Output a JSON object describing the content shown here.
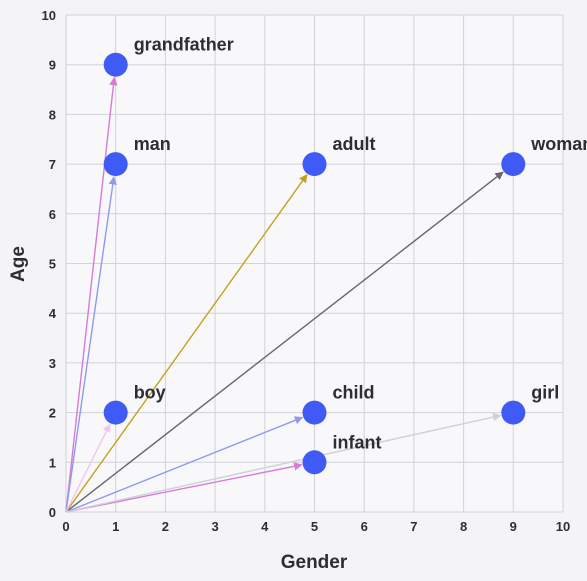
{
  "chart_data": {
    "type": "scatter",
    "title": "",
    "xlabel": "Gender",
    "ylabel": "Age",
    "xlim": [
      0,
      10
    ],
    "ylim": [
      0,
      10
    ],
    "xticks": [
      "0",
      "1",
      "2",
      "3",
      "4",
      "5",
      "6",
      "7",
      "8",
      "9",
      "10"
    ],
    "yticks": [
      "0",
      "1",
      "2",
      "3",
      "4",
      "5",
      "6",
      "7",
      "8",
      "9",
      "10"
    ],
    "grid": true,
    "point_color": "#3f5af5",
    "points": [
      {
        "label": "grandfather",
        "x": 1,
        "y": 9,
        "arrow_color": "#d77ad9"
      },
      {
        "label": "man",
        "x": 1,
        "y": 7,
        "arrow_color": "#8f9be8"
      },
      {
        "label": "adult",
        "x": 5,
        "y": 7,
        "arrow_color": "#c3a11f"
      },
      {
        "label": "woman",
        "x": 9,
        "y": 7,
        "arrow_color": "#66666b"
      },
      {
        "label": "boy",
        "x": 1,
        "y": 2,
        "arrow_color": "#efc7ef"
      },
      {
        "label": "child",
        "x": 5,
        "y": 2,
        "arrow_color": "#8f9be8"
      },
      {
        "label": "infant",
        "x": 5,
        "y": 1,
        "arrow_color": "#d77ad9"
      },
      {
        "label": "girl",
        "x": 9,
        "y": 2,
        "arrow_color": "#d0d0d6"
      }
    ]
  }
}
